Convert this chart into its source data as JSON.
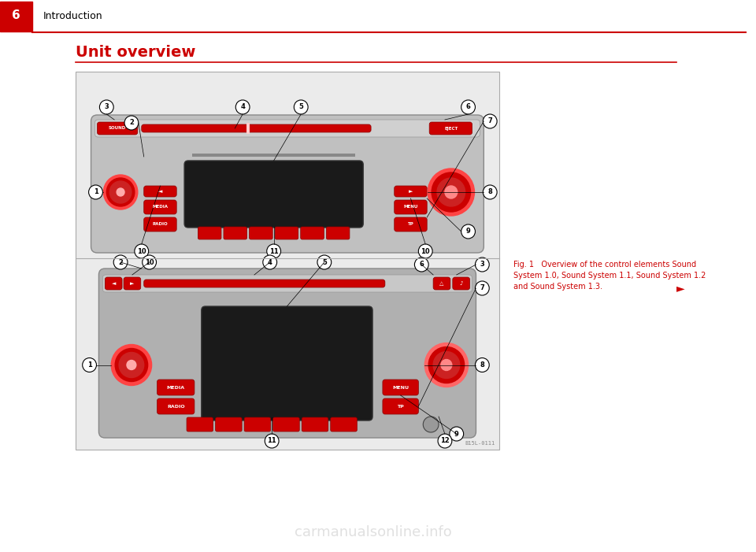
{
  "bg_color": "#ffffff",
  "page_num": "6",
  "page_num_bg": "#cc0000",
  "page_num_fg": "#ffffff",
  "header_text": "Introduction",
  "header_line_color": "#cc0000",
  "section_title": "Unit overview",
  "section_title_color": "#cc0000",
  "section_line_color": "#cc0000",
  "fig_caption": "Fig. 1   Overview of the control elements Sound\nSystem 1.0, Sound System 1.1, Sound System 1.2\nand Sound System 1.3.",
  "fig_caption_color": "#cc0000",
  "watermark": "carmanualsonline.info",
  "watermark_color": "#cccccc",
  "image_bg": "#f0f0f0",
  "radio_red": "#cc0000",
  "knob_red": "#cc0000",
  "display_dark": "#1a1a1a"
}
